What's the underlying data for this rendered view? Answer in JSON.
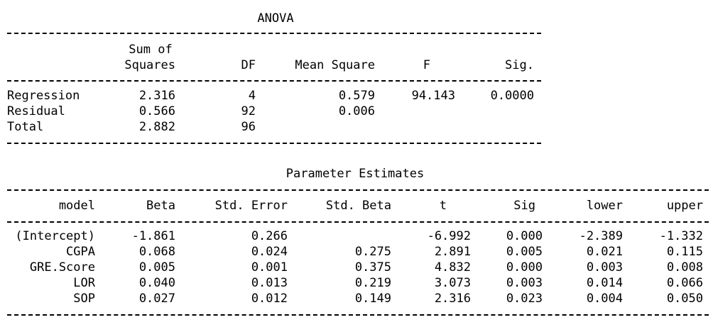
{
  "anova": {
    "title": "ANOVA",
    "headers": {
      "ss_top": "Sum of",
      "ss_bottom": "Squares",
      "df": "DF",
      "ms": "Mean Square",
      "f": "F",
      "sig": "Sig."
    },
    "rows": [
      {
        "label": "Regression",
        "ss": "2.316",
        "df": "4",
        "ms": "0.579",
        "f": "94.143",
        "sig": "0.0000"
      },
      {
        "label": "Residual",
        "ss": "0.566",
        "df": "92",
        "ms": "0.006",
        "f": "",
        "sig": ""
      },
      {
        "label": "Total",
        "ss": "2.882",
        "df": "96",
        "ms": "",
        "f": "",
        "sig": ""
      }
    ]
  },
  "params": {
    "title": "Parameter Estimates",
    "headers": [
      "model",
      "Beta",
      "Std. Error",
      "Std. Beta",
      "t",
      "Sig",
      "lower",
      "upper"
    ],
    "rows": [
      {
        "model": "(Intercept)",
        "beta": "-1.861",
        "se": "0.266",
        "std_beta": "",
        "t": "-6.992",
        "sig": "0.000",
        "lower": "-2.389",
        "upper": "-1.332"
      },
      {
        "model": "CGPA",
        "beta": "0.068",
        "se": "0.024",
        "std_beta": "0.275",
        "t": "2.891",
        "sig": "0.005",
        "lower": "0.021",
        "upper": "0.115"
      },
      {
        "model": "GRE.Score",
        "beta": "0.005",
        "se": "0.001",
        "std_beta": "0.375",
        "t": "4.832",
        "sig": "0.000",
        "lower": "0.003",
        "upper": "0.008"
      },
      {
        "model": "LOR",
        "beta": "0.040",
        "se": "0.013",
        "std_beta": "0.219",
        "t": "3.073",
        "sig": "0.003",
        "lower": "0.014",
        "upper": "0.066"
      },
      {
        "model": "SOP",
        "beta": "0.027",
        "se": "0.012",
        "std_beta": "0.149",
        "t": "2.316",
        "sig": "0.023",
        "lower": "0.004",
        "upper": "0.050"
      }
    ]
  }
}
